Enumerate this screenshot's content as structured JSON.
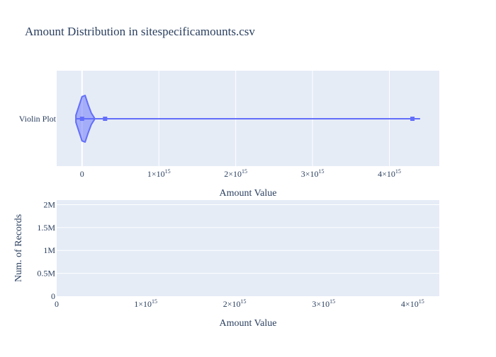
{
  "chart_data": [
    {
      "type": "violin",
      "title": "Amount Distribution in sitespecificamounts.csv",
      "category": "Violin Plot",
      "xlabel": "Amount Value",
      "ylabel": "",
      "xlim": [
        -330000000000000.0,
        4650000000000000.0
      ],
      "x_ticks": [
        {
          "value": 0,
          "label": "0",
          "exp": ""
        },
        {
          "value": 1000000000000000.0,
          "label": "1×10",
          "exp": "15"
        },
        {
          "value": 2000000000000000.0,
          "label": "2×10",
          "exp": "15"
        },
        {
          "value": 3000000000000000.0,
          "label": "3×10",
          "exp": "15"
        },
        {
          "value": 4000000000000000.0,
          "label": "4×10",
          "exp": "15"
        }
      ],
      "points": [
        0,
        300000000000000.0,
        4300000000000000.0
      ],
      "whisker": [
        -80000000000000.0,
        4400000000000000.0
      ],
      "kde_x": [
        -80000000000000.0,
        -40000000000000.0,
        0,
        40000000000000.0,
        80000000000000.0,
        120000000000000.0,
        160000000000000.0
      ],
      "kde_density": [
        0.15,
        0.55,
        0.95,
        1.0,
        0.6,
        0.25,
        0.04
      ],
      "color": "#636efa",
      "grid": true,
      "background": "#e5ecf6"
    },
    {
      "type": "bar",
      "xlabel": "Amount Value",
      "ylabel": "Num. of Records",
      "xlim": [
        0,
        4300000000000000.0
      ],
      "ylim": [
        0,
        2100000
      ],
      "x_ticks": [
        {
          "value": 0,
          "label": "0",
          "exp": ""
        },
        {
          "value": 1000000000000000.0,
          "label": "1×10",
          "exp": "15"
        },
        {
          "value": 2000000000000000.0,
          "label": "2×10",
          "exp": "15"
        },
        {
          "value": 3000000000000000.0,
          "label": "3×10",
          "exp": "15"
        },
        {
          "value": 4000000000000000.0,
          "label": "4×10",
          "exp": "15"
        }
      ],
      "y_ticks": [
        {
          "value": 0,
          "label": "0"
        },
        {
          "value": 500000,
          "label": "0.5M"
        },
        {
          "value": 1000000,
          "label": "1M"
        },
        {
          "value": 1500000,
          "label": "1.5M"
        },
        {
          "value": 2000000,
          "label": "2M"
        }
      ],
      "bars": [],
      "color": "#636efa",
      "grid": true,
      "background": "#e5ecf6"
    }
  ]
}
